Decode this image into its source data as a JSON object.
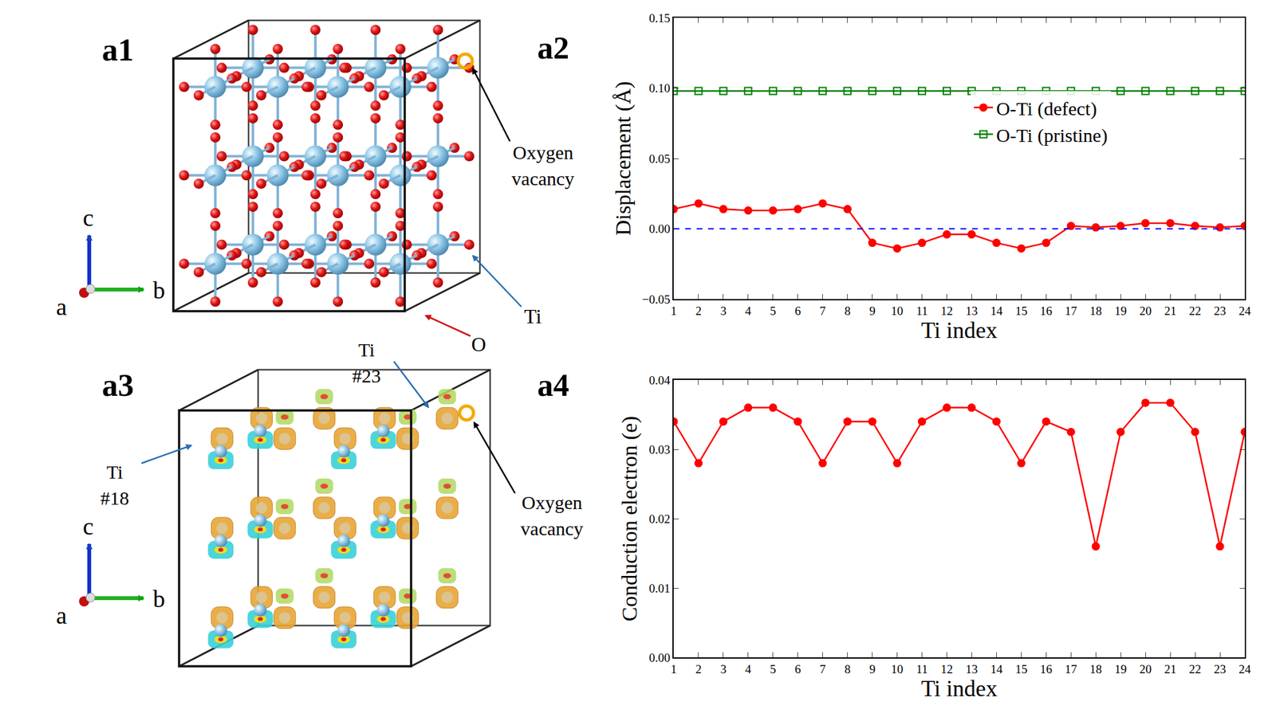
{
  "chart_data": [
    {
      "panel": "a2",
      "type": "line",
      "x_label": "Ti index",
      "y_label": "Displacement (Å)",
      "x": [
        1,
        2,
        3,
        4,
        5,
        6,
        7,
        8,
        9,
        10,
        11,
        12,
        13,
        14,
        15,
        16,
        17,
        18,
        19,
        20,
        21,
        22,
        23,
        24
      ],
      "series": [
        {
          "name": "O-Ti (defect)",
          "color": "#ff0000",
          "marker": "circle",
          "values": [
            0.014,
            0.018,
            0.014,
            0.013,
            0.013,
            0.014,
            0.018,
            0.014,
            -0.01,
            -0.014,
            -0.01,
            -0.004,
            -0.004,
            -0.01,
            -0.014,
            -0.01,
            0.002,
            0.001,
            0.002,
            0.004,
            0.004,
            0.002,
            0.001,
            0.002
          ]
        },
        {
          "name": "O-Ti (pristine)",
          "color": "#008000",
          "marker": "square-open",
          "values": [
            0.098,
            0.098,
            0.098,
            0.098,
            0.098,
            0.098,
            0.098,
            0.098,
            0.098,
            0.098,
            0.098,
            0.098,
            0.098,
            0.098,
            0.098,
            0.098,
            0.098,
            0.098,
            0.098,
            0.098,
            0.098,
            0.098,
            0.098,
            0.098
          ]
        }
      ],
      "xlim": [
        1,
        24
      ],
      "xticks": [
        1,
        2,
        3,
        4,
        5,
        6,
        7,
        8,
        9,
        10,
        11,
        12,
        13,
        14,
        15,
        16,
        17,
        18,
        19,
        20,
        21,
        22,
        23,
        24
      ],
      "ylim": [
        -0.05,
        0.15
      ],
      "yticks": [
        {
          "value": -0.05,
          "label": "−0.05"
        },
        {
          "value": 0,
          "label": "0.00"
        },
        {
          "value": 0.05,
          "label": "0.05"
        },
        {
          "value": 0.1,
          "label": "0.10"
        },
        {
          "value": 0.15,
          "label": "0.15"
        }
      ],
      "reference_lines": [
        {
          "y": 0,
          "color": "#0000ff",
          "line_style": "dashed"
        }
      ],
      "legend": "right",
      "grid": false
    },
    {
      "panel": "a4",
      "type": "line",
      "x_label": "Ti index",
      "y_label": "Conduction electron (e)",
      "x": [
        1,
        2,
        3,
        4,
        5,
        6,
        7,
        8,
        9,
        10,
        11,
        12,
        13,
        14,
        15,
        16,
        17,
        18,
        19,
        20,
        21,
        22,
        23,
        24
      ],
      "values": [
        0.034,
        0.028,
        0.034,
        0.036,
        0.036,
        0.034,
        0.028,
        0.034,
        0.034,
        0.028,
        0.034,
        0.036,
        0.036,
        0.034,
        0.028,
        0.034,
        0.0325,
        0.016,
        0.0325,
        0.0367,
        0.0367,
        0.0325,
        0.016,
        0.0325
      ],
      "color": "#ff0000",
      "marker": "circle",
      "xlim": [
        1,
        24
      ],
      "xticks": [
        1,
        2,
        3,
        4,
        5,
        6,
        7,
        8,
        9,
        10,
        11,
        12,
        13,
        14,
        15,
        16,
        17,
        18,
        19,
        20,
        21,
        22,
        23,
        24
      ],
      "ylim": [
        0,
        0.04
      ],
      "yticks": [
        {
          "value": 0,
          "label": "0.00"
        },
        {
          "value": 0.01,
          "label": "0.01"
        },
        {
          "value": 0.02,
          "label": "0.02"
        },
        {
          "value": 0.03,
          "label": "0.03"
        },
        {
          "value": 0.04,
          "label": "0.04"
        }
      ],
      "grid": false
    }
  ],
  "diagrams": [
    {
      "panel": "a1",
      "axes": [
        "a",
        "b",
        "c"
      ],
      "labels": {
        "vacancy": "Oxygen vacancy",
        "ti": "Ti",
        "o": "O"
      }
    },
    {
      "panel": "a3",
      "axes": [
        "a",
        "b",
        "c"
      ],
      "labels": {
        "vacancy": "Oxygen vacancy",
        "ti_23": "Ti #23",
        "ti_18": "Ti #18"
      }
    }
  ]
}
